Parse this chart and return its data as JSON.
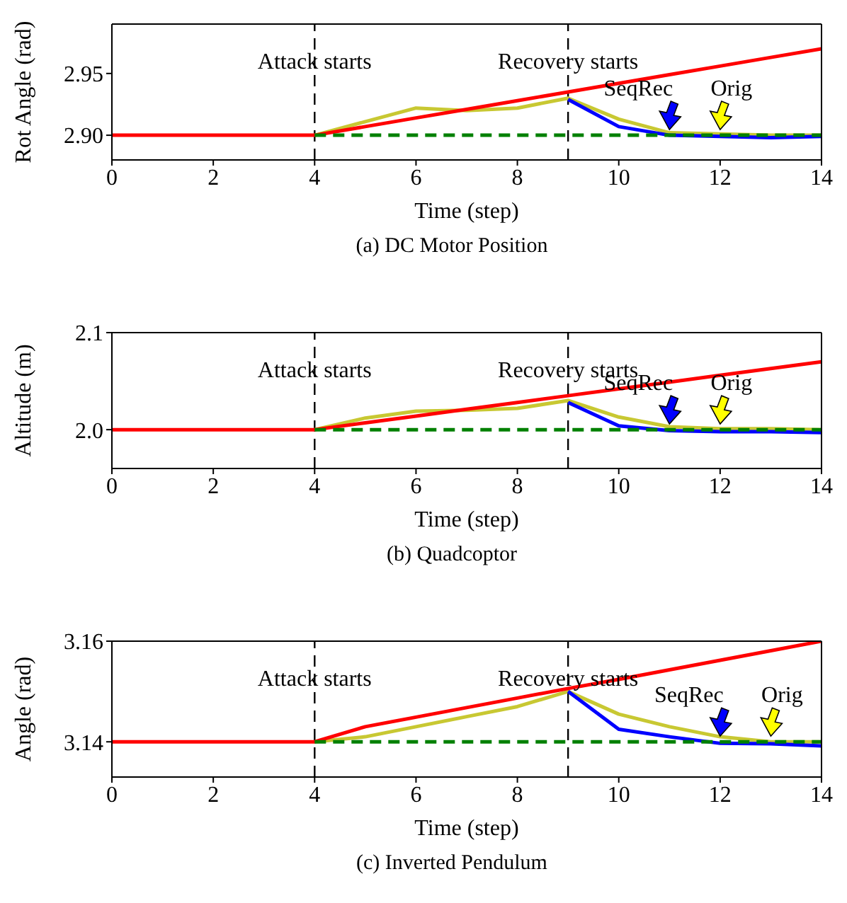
{
  "chart_data": [
    {
      "type": "line",
      "title": "(a) DC Motor Position",
      "xlabel": "Time (step)",
      "ylabel": "Rot Angle (rad)",
      "x": [
        0,
        1,
        2,
        3,
        4,
        5,
        6,
        7,
        8,
        9,
        10,
        11,
        12,
        13,
        14
      ],
      "xlim": [
        0,
        14
      ],
      "xticks": [
        0,
        2,
        4,
        6,
        8,
        10,
        12,
        14
      ],
      "ylim": [
        2.88,
        2.99
      ],
      "yticks": [
        {
          "value": 2.9,
          "label": "2.90"
        },
        2.95
      ],
      "series": [
        {
          "color": "#c8c832",
          "values": [
            null,
            null,
            null,
            null,
            2.9,
            2.911,
            2.922,
            2.92,
            2.922,
            2.93,
            2.913,
            2.902,
            2.901,
            2.9,
            2.9
          ]
        },
        {
          "color": "#0000ff",
          "values": [
            null,
            null,
            null,
            null,
            null,
            null,
            null,
            null,
            null,
            2.929,
            2.907,
            2.9,
            2.899,
            2.898,
            2.899
          ]
        },
        {
          "color": "#008000",
          "line_style": "dashed",
          "values": [
            null,
            null,
            null,
            null,
            2.9,
            2.9,
            2.9,
            2.9,
            2.9,
            2.9,
            2.9,
            2.9,
            2.9,
            2.9,
            2.9
          ]
        },
        {
          "color": "#ff0000",
          "values": [
            2.9,
            2.9,
            2.9,
            2.9,
            2.9,
            2.907,
            2.914,
            2.921,
            2.928,
            2.935,
            2.942,
            2.949,
            2.956,
            2.963,
            2.97
          ]
        }
      ],
      "ref_lines": [
        {
          "axis": "x",
          "value": 4,
          "label": "Attack starts",
          "color": "#000000",
          "line_style": "dashed"
        },
        {
          "axis": "x",
          "value": 9,
          "label": "Recovery starts",
          "color": "#000000",
          "line_style": "dashed"
        }
      ],
      "annotations": [
        {
          "text": "SeqRec",
          "x": 11,
          "y": 2.9
        },
        {
          "text": "Orig",
          "x": 12,
          "y": 2.9
        }
      ]
    },
    {
      "type": "line",
      "title": "(b) Quadcoptor",
      "xlabel": "Time (step)",
      "ylabel": "Altitude (m)",
      "x": [
        0,
        1,
        2,
        3,
        4,
        5,
        6,
        7,
        8,
        9,
        10,
        11,
        12,
        13,
        14
      ],
      "xlim": [
        0,
        14
      ],
      "xticks": [
        0,
        2,
        4,
        6,
        8,
        10,
        12,
        14
      ],
      "ylim": [
        1.96,
        2.1
      ],
      "yticks": [
        {
          "value": 2,
          "label": "2.0"
        },
        2.1
      ],
      "series": [
        {
          "color": "#c8c832",
          "values": [
            null,
            null,
            null,
            null,
            2.0,
            2.012,
            2.019,
            2.02,
            2.022,
            2.03,
            2.013,
            2.003,
            2.001,
            2.001,
            2.0
          ]
        },
        {
          "color": "#0000ff",
          "values": [
            null,
            null,
            null,
            null,
            null,
            null,
            null,
            null,
            null,
            2.028,
            2.004,
            1.999,
            1.998,
            1.998,
            1.997
          ]
        },
        {
          "color": "#008000",
          "line_style": "dashed",
          "values": [
            null,
            null,
            null,
            null,
            2.0,
            2.0,
            2.0,
            2.0,
            2.0,
            2.0,
            2.0,
            2.0,
            2.0,
            2.0,
            2.0
          ]
        },
        {
          "color": "#ff0000",
          "values": [
            2.0,
            2.0,
            2.0,
            2.0,
            2.0,
            2.007,
            2.014,
            2.021,
            2.028,
            2.035,
            2.042,
            2.049,
            2.056,
            2.063,
            2.07
          ]
        }
      ],
      "ref_lines": [
        {
          "axis": "x",
          "value": 4,
          "label": "Attack starts",
          "color": "#000000",
          "line_style": "dashed"
        },
        {
          "axis": "x",
          "value": 9,
          "label": "Recovery starts",
          "color": "#000000",
          "line_style": "dashed"
        }
      ],
      "annotations": [
        {
          "text": "SeqRec",
          "x": 11,
          "y": 2.0
        },
        {
          "text": "Orig",
          "x": 12,
          "y": 2.0
        }
      ]
    },
    {
      "type": "line",
      "title": "(c) Inverted Pendulum",
      "xlabel": "Time (step)",
      "ylabel": "Angle (rad)",
      "x": [
        0,
        1,
        2,
        3,
        4,
        5,
        6,
        7,
        8,
        9,
        10,
        11,
        12,
        13,
        14
      ],
      "xlim": [
        0,
        14
      ],
      "xticks": [
        0,
        2,
        4,
        6,
        8,
        10,
        12,
        14
      ],
      "ylim": [
        3.133,
        3.16
      ],
      "yticks": [
        3.14,
        3.16
      ],
      "series": [
        {
          "color": "#c8c832",
          "values": [
            null,
            null,
            null,
            null,
            3.14,
            3.141,
            3.143,
            3.145,
            3.147,
            3.15,
            3.1455,
            3.143,
            3.141,
            3.14,
            3.14
          ]
        },
        {
          "color": "#0000ff",
          "values": [
            null,
            null,
            null,
            null,
            null,
            null,
            null,
            null,
            null,
            3.15,
            3.1425,
            3.141,
            3.1397,
            3.1396,
            3.1392
          ]
        },
        {
          "color": "#008000",
          "line_style": "dashed",
          "values": [
            null,
            null,
            null,
            null,
            3.14,
            3.14,
            3.14,
            3.14,
            3.14,
            3.14,
            3.14,
            3.14,
            3.14,
            3.14,
            3.14
          ]
        },
        {
          "color": "#ff0000",
          "values": [
            3.14,
            3.14,
            3.14,
            3.14,
            3.14,
            3.143,
            3.1449,
            3.1468,
            3.1487,
            3.1506,
            3.1524,
            3.1543,
            3.1562,
            3.1581,
            3.16
          ]
        }
      ],
      "ref_lines": [
        {
          "axis": "x",
          "value": 4,
          "label": "Attack starts",
          "color": "#000000",
          "line_style": "dashed"
        },
        {
          "axis": "x",
          "value": 9,
          "label": "Recovery starts",
          "color": "#000000",
          "line_style": "dashed"
        }
      ],
      "annotations": [
        {
          "text": "SeqRec",
          "x": 12,
          "y": 3.14
        },
        {
          "text": "Orig",
          "x": 13,
          "y": 3.14
        }
      ]
    }
  ]
}
